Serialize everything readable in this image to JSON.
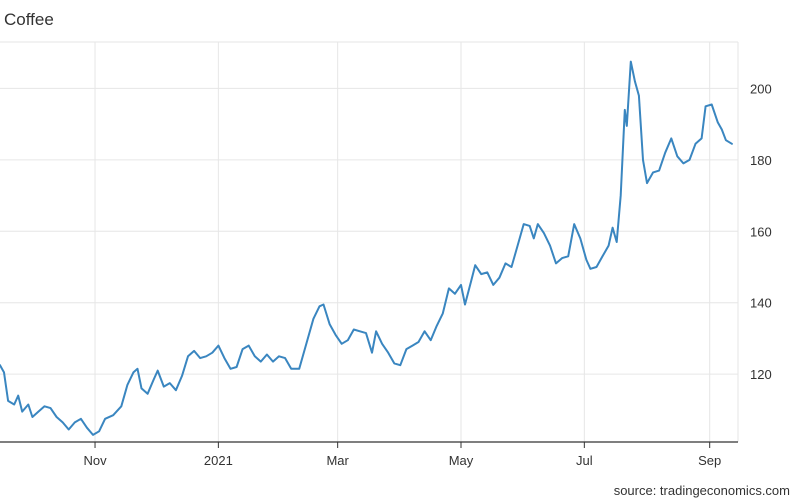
{
  "header": {
    "title": "Coffee"
  },
  "footer": {
    "source": "source: tradingeconomics.com"
  },
  "colors": {
    "line": "#3a86c0",
    "grid": "#e6e6e6",
    "axis": "#333333"
  },
  "chart_data": {
    "type": "line",
    "title": "Coffee",
    "xlabel": "",
    "ylabel": "",
    "x_range": [
      "2020-09-15",
      "2021-09-15"
    ],
    "ylim": [
      101,
      213
    ],
    "grid": true,
    "y_axis_side": "right",
    "x_tick_labels": [
      {
        "date": "2020-11-01",
        "label": "Nov"
      },
      {
        "date": "2021-01-01",
        "label": "2021"
      },
      {
        "date": "2021-03-01",
        "label": "Mar"
      },
      {
        "date": "2021-05-01",
        "label": "May"
      },
      {
        "date": "2021-07-01",
        "label": "Jul"
      },
      {
        "date": "2021-09-01",
        "label": "Sep"
      }
    ],
    "y_ticks": [
      120,
      140,
      160,
      180,
      200
    ],
    "series": [
      {
        "values": [
          [
            "2020-09-15",
            122.5
          ],
          [
            "2020-09-17",
            120.5
          ],
          [
            "2020-09-19",
            112.5
          ],
          [
            "2020-09-22",
            111.5
          ],
          [
            "2020-09-24",
            114
          ],
          [
            "2020-09-26",
            109.5
          ],
          [
            "2020-09-29",
            111.5
          ],
          [
            "2020-10-01",
            108
          ],
          [
            "2020-10-04",
            109.5
          ],
          [
            "2020-10-07",
            111
          ],
          [
            "2020-10-10",
            110.5
          ],
          [
            "2020-10-13",
            108
          ],
          [
            "2020-10-16",
            106.5
          ],
          [
            "2020-10-19",
            104.5
          ],
          [
            "2020-10-22",
            106.5
          ],
          [
            "2020-10-25",
            107.5
          ],
          [
            "2020-10-28",
            105
          ],
          [
            "2020-10-31",
            103
          ],
          [
            "2020-11-03",
            104
          ],
          [
            "2020-11-06",
            107.5
          ],
          [
            "2020-11-10",
            108.5
          ],
          [
            "2020-11-14",
            111
          ],
          [
            "2020-11-17",
            117
          ],
          [
            "2020-11-20",
            120.5
          ],
          [
            "2020-11-22",
            121.5
          ],
          [
            "2020-11-24",
            116
          ],
          [
            "2020-11-27",
            114.5
          ],
          [
            "2020-11-30",
            118.5
          ],
          [
            "2020-12-02",
            121
          ],
          [
            "2020-12-05",
            116.5
          ],
          [
            "2020-12-08",
            117.5
          ],
          [
            "2020-12-11",
            115.5
          ],
          [
            "2020-12-14",
            119.5
          ],
          [
            "2020-12-17",
            125
          ],
          [
            "2020-12-20",
            126.5
          ],
          [
            "2020-12-23",
            124.5
          ],
          [
            "2020-12-26",
            125
          ],
          [
            "2020-12-29",
            126
          ],
          [
            "2021-01-01",
            128
          ],
          [
            "2021-01-04",
            124.5
          ],
          [
            "2021-01-07",
            121.5
          ],
          [
            "2021-01-10",
            122
          ],
          [
            "2021-01-13",
            127
          ],
          [
            "2021-01-16",
            128
          ],
          [
            "2021-01-19",
            125
          ],
          [
            "2021-01-22",
            123.5
          ],
          [
            "2021-01-25",
            125.5
          ],
          [
            "2021-01-28",
            123.5
          ],
          [
            "2021-01-31",
            125
          ],
          [
            "2021-02-03",
            124.5
          ],
          [
            "2021-02-06",
            121.5
          ],
          [
            "2021-02-10",
            121.5
          ],
          [
            "2021-02-13",
            127.5
          ],
          [
            "2021-02-17",
            135.5
          ],
          [
            "2021-02-20",
            139
          ],
          [
            "2021-02-22",
            139.5
          ],
          [
            "2021-02-25",
            134
          ],
          [
            "2021-02-28",
            131
          ],
          [
            "2021-03-03",
            128.5
          ],
          [
            "2021-03-06",
            129.5
          ],
          [
            "2021-03-09",
            132.5
          ],
          [
            "2021-03-12",
            132
          ],
          [
            "2021-03-15",
            131.5
          ],
          [
            "2021-03-18",
            126
          ],
          [
            "2021-03-20",
            132
          ],
          [
            "2021-03-23",
            128.5
          ],
          [
            "2021-03-26",
            126
          ],
          [
            "2021-03-29",
            123
          ],
          [
            "2021-04-01",
            122.5
          ],
          [
            "2021-04-04",
            127
          ],
          [
            "2021-04-07",
            128
          ],
          [
            "2021-04-10",
            129
          ],
          [
            "2021-04-13",
            132
          ],
          [
            "2021-04-16",
            129.5
          ],
          [
            "2021-04-19",
            133.5
          ],
          [
            "2021-04-22",
            137
          ],
          [
            "2021-04-25",
            144
          ],
          [
            "2021-04-28",
            142.5
          ],
          [
            "2021-05-01",
            145
          ],
          [
            "2021-05-03",
            139.5
          ],
          [
            "2021-05-06",
            146
          ],
          [
            "2021-05-08",
            150.5
          ],
          [
            "2021-05-11",
            148
          ],
          [
            "2021-05-14",
            148.5
          ],
          [
            "2021-05-17",
            145
          ],
          [
            "2021-05-20",
            147
          ],
          [
            "2021-05-23",
            151
          ],
          [
            "2021-05-26",
            150
          ],
          [
            "2021-05-29",
            156
          ],
          [
            "2021-06-01",
            162
          ],
          [
            "2021-06-04",
            161.5
          ],
          [
            "2021-06-06",
            158
          ],
          [
            "2021-06-08",
            162
          ],
          [
            "2021-06-11",
            159.5
          ],
          [
            "2021-06-14",
            156
          ],
          [
            "2021-06-17",
            151
          ],
          [
            "2021-06-20",
            152.5
          ],
          [
            "2021-06-23",
            153
          ],
          [
            "2021-06-26",
            162
          ],
          [
            "2021-06-29",
            158
          ],
          [
            "2021-07-02",
            152
          ],
          [
            "2021-07-04",
            149.5
          ],
          [
            "2021-07-07",
            150
          ],
          [
            "2021-07-10",
            153
          ],
          [
            "2021-07-13",
            156
          ],
          [
            "2021-07-15",
            161
          ],
          [
            "2021-07-17",
            157
          ],
          [
            "2021-07-19",
            170
          ],
          [
            "2021-07-21",
            194
          ],
          [
            "2021-07-22",
            189.5
          ],
          [
            "2021-07-24",
            207.5
          ],
          [
            "2021-07-26",
            202
          ],
          [
            "2021-07-28",
            198
          ],
          [
            "2021-07-30",
            180
          ],
          [
            "2021-08-01",
            173.5
          ],
          [
            "2021-08-04",
            176.5
          ],
          [
            "2021-08-07",
            177
          ],
          [
            "2021-08-10",
            182
          ],
          [
            "2021-08-13",
            186
          ],
          [
            "2021-08-16",
            181
          ],
          [
            "2021-08-19",
            179
          ],
          [
            "2021-08-22",
            180
          ],
          [
            "2021-08-25",
            184.5
          ],
          [
            "2021-08-28",
            186
          ],
          [
            "2021-08-30",
            195
          ],
          [
            "2021-09-02",
            195.5
          ],
          [
            "2021-09-05",
            190.5
          ],
          [
            "2021-09-07",
            188.5
          ],
          [
            "2021-09-09",
            185.5
          ],
          [
            "2021-09-12",
            184.5
          ]
        ]
      }
    ]
  }
}
